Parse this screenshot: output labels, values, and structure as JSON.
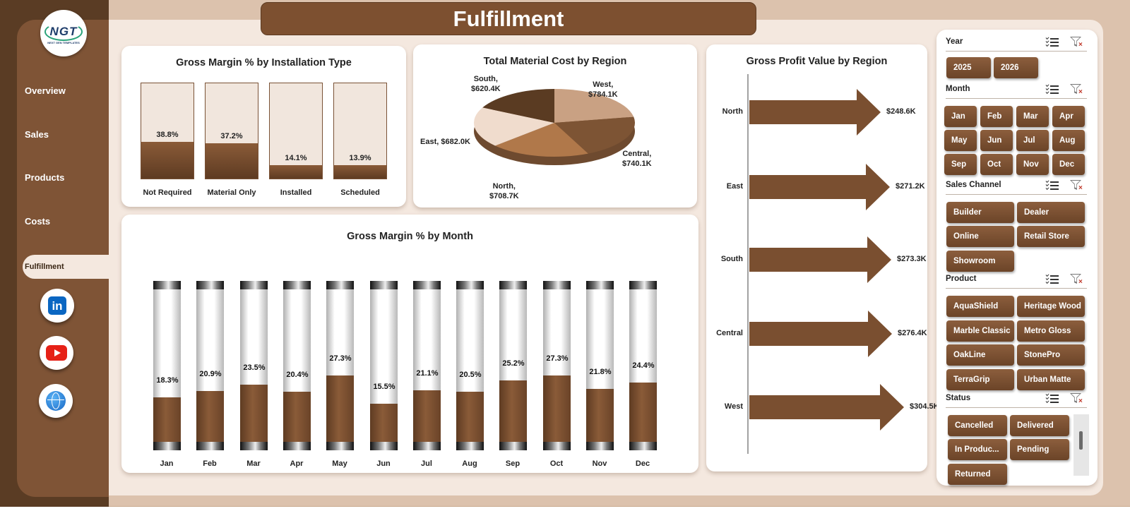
{
  "header": {
    "title": "Fulfillment"
  },
  "logo": {
    "text": "NGT",
    "subtitle": "NEXT GEN TEMPLATES"
  },
  "nav": {
    "items": [
      {
        "label": "Overview"
      },
      {
        "label": "Sales"
      },
      {
        "label": "Products"
      },
      {
        "label": "Costs"
      },
      {
        "label": "Fulfillment",
        "active": true
      }
    ]
  },
  "social": {
    "linkedin_icon": "linkedin-icon",
    "youtube_icon": "youtube-icon",
    "website_icon": "globe-icon",
    "linkedin_glyph": "in"
  },
  "colors": {
    "brand_dark": "#5a3c24",
    "brand": "#7f5436",
    "panel": "#f4e8df",
    "fill": "#7a4f30"
  },
  "installation_chart": {
    "chart_data": {
      "type": "bar",
      "title": "Gross Margin % by Installation Type",
      "categories": [
        "Not Required",
        "Material Only",
        "Installed",
        "Scheduled"
      ],
      "values": [
        38.8,
        37.2,
        14.1,
        13.9
      ],
      "labels": [
        "38.8%",
        "37.2%",
        "14.1%",
        "13.9%"
      ],
      "ylim": [
        0,
        100
      ]
    }
  },
  "region_cost_chart": {
    "chart_data": {
      "type": "pie",
      "title": "Total Material Cost by Region",
      "categories": [
        "West",
        "Central",
        "North",
        "East",
        "South"
      ],
      "values": [
        784.1,
        740.1,
        708.7,
        682.0,
        620.4
      ],
      "labels": [
        "West,\n$784.1K",
        "Central,\n$740.1K",
        "North,\n$708.7K",
        "East, $682.0K",
        "South,\n$620.4K"
      ],
      "colors": [
        "#c9a183",
        "#7d5434",
        "#b0784a",
        "#f0dccd",
        "#5a3b22"
      ]
    }
  },
  "month_chart": {
    "chart_data": {
      "type": "bar",
      "title": "Gross Margin % by Month",
      "categories": [
        "Jan",
        "Feb",
        "Mar",
        "Apr",
        "May",
        "Jun",
        "Jul",
        "Aug",
        "Sep",
        "Oct",
        "Nov",
        "Dec"
      ],
      "values": [
        18.3,
        20.9,
        23.5,
        20.4,
        27.3,
        15.5,
        21.1,
        20.5,
        25.2,
        27.3,
        21.8,
        24.4
      ],
      "labels": [
        "18.3%",
        "20.9%",
        "23.5%",
        "20.4%",
        "27.3%",
        "15.5%",
        "21.1%",
        "20.5%",
        "25.2%",
        "27.3%",
        "21.8%",
        "24.4%"
      ],
      "ylim": [
        0,
        100
      ]
    }
  },
  "profit_chart": {
    "chart_data": {
      "type": "bar",
      "title": "Gross Profit Value by Region",
      "categories": [
        "North",
        "East",
        "South",
        "Central",
        "West"
      ],
      "values": [
        248.6,
        271.2,
        273.3,
        276.4,
        304.5
      ],
      "labels": [
        "$248.6K",
        "$271.2K",
        "$273.3K",
        "$276.4K",
        "$304.5K"
      ]
    }
  },
  "slicers": {
    "year": {
      "title": "Year",
      "items": [
        "2025",
        "2026"
      ]
    },
    "month": {
      "title": "Month",
      "items": [
        "Jan",
        "Feb",
        "Mar",
        "Apr",
        "May",
        "Jun",
        "Jul",
        "Aug",
        "Sep",
        "Oct",
        "Nov",
        "Dec"
      ]
    },
    "channel": {
      "title": "Sales Channel",
      "items": [
        "Builder",
        "Dealer",
        "Online",
        "Retail Store",
        "Showroom"
      ]
    },
    "product": {
      "title": "Product",
      "items": [
        "AquaShield",
        "Heritage Wood",
        "Marble Classic",
        "Metro Gloss",
        "OakLine",
        "StonePro",
        "TerraGrip",
        "Urban Matte"
      ]
    },
    "status": {
      "title": "Status",
      "items": [
        "Cancelled",
        "Delivered",
        "In Produc...",
        "Pending",
        "Returned"
      ]
    }
  }
}
